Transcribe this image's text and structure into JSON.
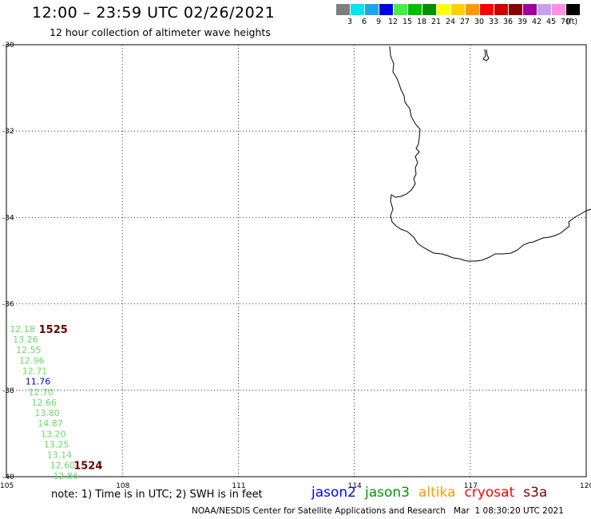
{
  "header": {
    "title": "12:00 – 23:59 UTC 02/26/2021",
    "subtitle": "12 hour collection of altimeter wave heights"
  },
  "legend": {
    "unit": "(ft)",
    "items": [
      {
        "label": "3",
        "color": "#7f7f7f"
      },
      {
        "label": "6",
        "color": "#00e5ee"
      },
      {
        "label": "9",
        "color": "#1fa5ee"
      },
      {
        "label": "12",
        "color": "#0000ee"
      },
      {
        "label": "15",
        "color": "#44ee44"
      },
      {
        "label": "18",
        "color": "#00c000"
      },
      {
        "label": "21",
        "color": "#009000"
      },
      {
        "label": "24",
        "color": "#ffff00"
      },
      {
        "label": "27",
        "color": "#ffd000"
      },
      {
        "label": "30",
        "color": "#ff9900"
      },
      {
        "label": "33",
        "color": "#ff0000"
      },
      {
        "label": "36",
        "color": "#d00000"
      },
      {
        "label": "39",
        "color": "#8b0000"
      },
      {
        "label": "42",
        "color": "#a000a0"
      },
      {
        "label": "45",
        "color": "#c8a0f0"
      },
      {
        "label": "70",
        "color": "#ff90e0"
      },
      {
        "label": "",
        "color": "#000000"
      }
    ]
  },
  "map": {
    "lat_labels": [
      "-30",
      "-32",
      "-34",
      "-36",
      "-38",
      "-40"
    ],
    "lon_labels": [
      "105",
      "108",
      "111",
      "114",
      "117",
      "120"
    ],
    "observations": [
      {
        "value": "12.18",
        "lon": 105.09,
        "lat": -36.58,
        "color": "#66dd66"
      },
      {
        "value": "13.26",
        "lon": 105.17,
        "lat": -36.82,
        "color": "#66dd66"
      },
      {
        "value": "12.55",
        "lon": 105.25,
        "lat": -37.06,
        "color": "#66dd66"
      },
      {
        "value": "12.96",
        "lon": 105.33,
        "lat": -37.31,
        "color": "#66dd66"
      },
      {
        "value": "12.71",
        "lon": 105.41,
        "lat": -37.55,
        "color": "#66dd66"
      },
      {
        "value": "11.76",
        "lon": 105.49,
        "lat": -37.79,
        "color": "#0000cc"
      },
      {
        "value": "12.70",
        "lon": 105.57,
        "lat": -38.04,
        "color": "#66dd66"
      },
      {
        "value": "12.66",
        "lon": 105.65,
        "lat": -38.28,
        "color": "#66dd66"
      },
      {
        "value": "13.80",
        "lon": 105.73,
        "lat": -38.52,
        "color": "#66dd66"
      },
      {
        "value": "14.87",
        "lon": 105.81,
        "lat": -38.76,
        "color": "#66dd66"
      },
      {
        "value": "13.20",
        "lon": 105.89,
        "lat": -39.01,
        "color": "#66dd66"
      },
      {
        "value": "13.25",
        "lon": 105.97,
        "lat": -39.25,
        "color": "#66dd66"
      },
      {
        "value": "13.14",
        "lon": 106.05,
        "lat": -39.49,
        "color": "#66dd66"
      },
      {
        "value": "12.60",
        "lon": 106.13,
        "lat": -39.73,
        "color": "#66dd66"
      },
      {
        "value": "12.86",
        "lon": 106.21,
        "lat": -39.98,
        "color": "#66dd66"
      }
    ],
    "time_tags": [
      {
        "value": "1525",
        "lon": 105.84,
        "lat": -36.58,
        "color": "#6b0000"
      },
      {
        "value": "1524",
        "lon": 106.74,
        "lat": -39.73,
        "color": "#6b0000"
      }
    ],
    "coast_color": "#000000",
    "grid_color": "#000000"
  },
  "footer": {
    "note": "note: 1) Time is in UTC; 2) SWH is in feet",
    "satellites": [
      {
        "name": "jason2",
        "color": "#0000ff"
      },
      {
        "name": "jason3",
        "color": "#009900"
      },
      {
        "name": "altika",
        "color": "#ff9900"
      },
      {
        "name": "cryosat",
        "color": "#ff0000"
      },
      {
        "name": "s3a",
        "color": "#800000"
      }
    ],
    "credit": "NOAA/NESDIS Center for Satellite Applications and Research   Mar  1 08:30:20 UTC 2021"
  }
}
